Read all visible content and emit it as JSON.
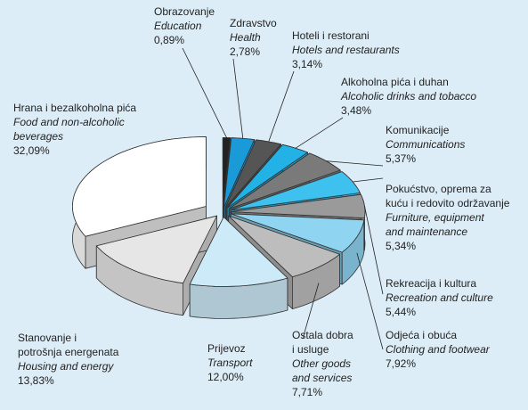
{
  "chart_data": {
    "type": "pie",
    "categories": [
      [
        "Obrazovanje"
      ],
      [
        "Zdravstvo"
      ],
      [
        "Hoteli i restorani"
      ],
      [
        "Alkoholna pića i duhan"
      ],
      [
        "Komunikacije"
      ],
      [
        "Pokućstvo, oprema za",
        "kuću i redovito održavanje"
      ],
      [
        "Rekreacija i kultura"
      ],
      [
        "Odjeća i obuća"
      ],
      [
        "Ostala dobra",
        "i usluge"
      ],
      [
        "Prijevoz"
      ],
      [
        "Stanovanje i",
        "potrošnja energenata"
      ],
      [
        "Hrana i bezalkoholna pića"
      ]
    ],
    "categories_en": [
      [
        "Education"
      ],
      [
        "Health"
      ],
      [
        "Hotels and restaurants"
      ],
      [
        "Alcoholic drinks and tobacco"
      ],
      [
        "Communications"
      ],
      [
        "Furniture, equipment",
        "and maintenance"
      ],
      [
        "Recreation and culture"
      ],
      [
        "Clothing and footwear"
      ],
      [
        "Other goods",
        "and services"
      ],
      [
        "Transport"
      ],
      [
        "Housing and energy"
      ],
      [
        "Food and non-alcoholic",
        "beverages"
      ]
    ],
    "values": [
      0.89,
      2.78,
      3.14,
      3.48,
      5.37,
      5.34,
      5.44,
      7.92,
      7.71,
      12.0,
      13.83,
      32.09
    ],
    "value_labels": [
      "0,89%",
      "2,78%",
      "3,14%",
      "3,48%",
      "5,37%",
      "5,34%",
      "5,44%",
      "7,92%",
      "7,71%",
      "12,00%",
      "13,83%",
      "32,09%"
    ],
    "colors": [
      "#222222",
      "#1a9ad6",
      "#555555",
      "#22b2e6",
      "#7a7a7a",
      "#3ec1ee",
      "#9a9a9a",
      "#8fd4f0",
      "#bdbdbd",
      "#cdeaf8",
      "#e6e6e6",
      "#ffffff"
    ]
  }
}
